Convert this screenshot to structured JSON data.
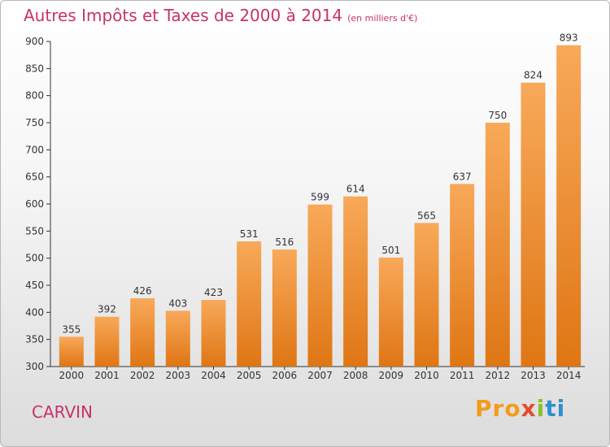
{
  "title": "Autres Impôts et Taxes de 2000 à 2014",
  "subtitle": "(en milliers d'€)",
  "city": "CARVIN",
  "logo": [
    "Pro",
    "x",
    "i",
    "ti"
  ],
  "colors": {
    "accent": "#c8326b",
    "bar_top": "#f7a550",
    "bar_bottom": "#e27a18"
  },
  "chart_data": {
    "type": "bar",
    "title": "Autres Impôts et Taxes de 2000 à 2014",
    "subtitle": "(en milliers d'€)",
    "categories": [
      "2000",
      "2001",
      "2002",
      "2003",
      "2004",
      "2005",
      "2006",
      "2007",
      "2008",
      "2009",
      "2010",
      "2011",
      "2012",
      "2013",
      "2014"
    ],
    "values": [
      355,
      392,
      426,
      403,
      423,
      531,
      516,
      599,
      614,
      501,
      565,
      637,
      750,
      824,
      893
    ],
    "ylim": [
      300,
      900
    ],
    "yticks": [
      300,
      350,
      400,
      450,
      500,
      550,
      600,
      650,
      700,
      750,
      800,
      850,
      900
    ],
    "grid": false,
    "xlabel": "",
    "ylabel": ""
  }
}
